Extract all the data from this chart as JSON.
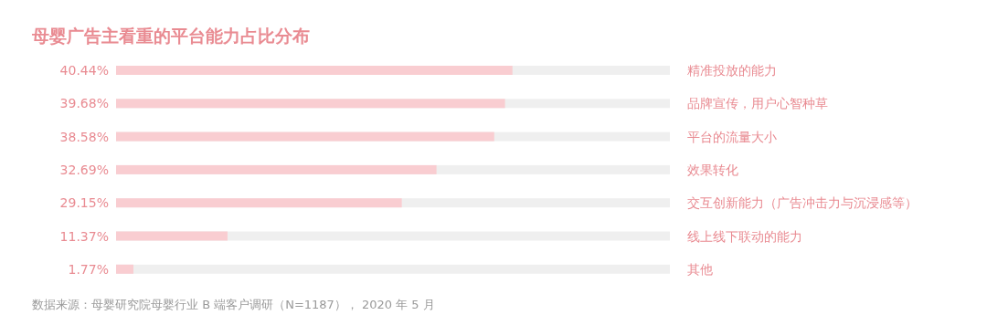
{
  "chart_data": {
    "type": "bar",
    "orientation": "horizontal",
    "title": "母婴广告主看重的平台能力占比分布",
    "categories": [
      "精准投放的能力",
      "品牌宣传，用户心智种草",
      "平台的流量大小",
      "效果转化",
      "交互创新能力（广告冲击力与沉浸感等）",
      "线上线下联动的能力",
      "其他"
    ],
    "values": [
      40.44,
      39.68,
      38.58,
      32.69,
      29.15,
      11.37,
      1.77
    ],
    "value_labels": [
      "40.44%",
      "39.68%",
      "38.58%",
      "32.69%",
      "29.15%",
      "11.37%",
      "1.77%"
    ],
    "color": "#f9cdd1",
    "xlim": [
      0,
      56.5
    ],
    "annotations": [
      "数据来源：母婴研究院母婴行业 B 端客户调研（N=1187）， 2020 年 5 月"
    ]
  }
}
